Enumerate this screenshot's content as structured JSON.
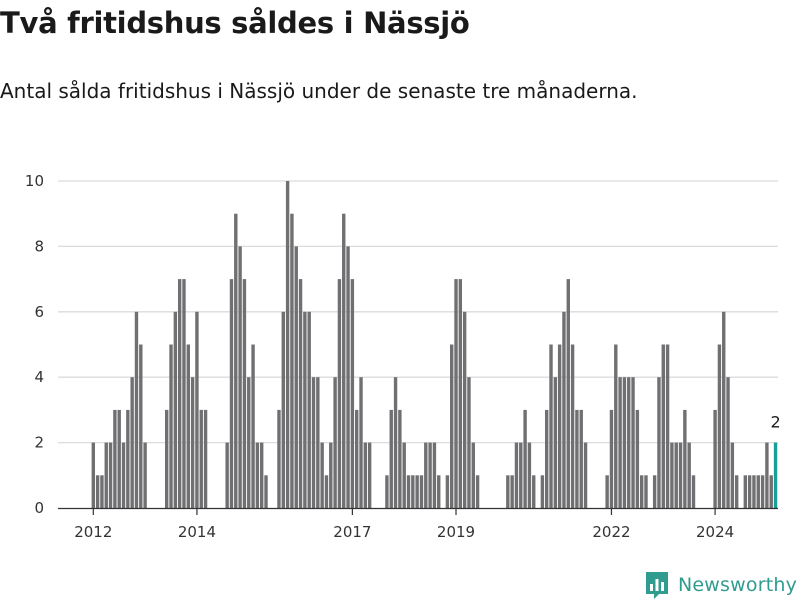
{
  "title": "Två fritidshus såldes i Nässjö",
  "subtitle": "Antal sålda fritidshus i Nässjö under de senaste tre månaderna.",
  "brand": {
    "name": "Newsworthy",
    "logo_icon": "newsworthy-bar-chart-logo-icon"
  },
  "colors": {
    "bar": "#707073",
    "highlight": "#16a096",
    "grid": "#dcdcdc",
    "axis": "#333333",
    "brand": "#2f9c8f"
  },
  "chart_data": {
    "type": "bar",
    "x_start": "2012-01",
    "x_step": "month",
    "values": [
      2,
      1,
      1,
      2,
      2,
      3,
      3,
      2,
      3,
      4,
      6,
      5,
      2,
      0,
      0,
      0,
      0,
      3,
      5,
      6,
      7,
      7,
      5,
      4,
      6,
      3,
      3,
      0,
      0,
      0,
      0,
      2,
      7,
      9,
      8,
      7,
      4,
      5,
      2,
      2,
      1,
      0,
      0,
      3,
      6,
      10,
      9,
      8,
      7,
      6,
      6,
      4,
      4,
      2,
      1,
      2,
      4,
      7,
      9,
      8,
      7,
      3,
      4,
      2,
      2,
      0,
      0,
      0,
      1,
      3,
      4,
      3,
      2,
      1,
      1,
      1,
      1,
      2,
      2,
      2,
      1,
      0,
      1,
      5,
      7,
      7,
      6,
      4,
      2,
      1,
      0,
      0,
      0,
      0,
      0,
      0,
      1,
      1,
      2,
      2,
      3,
      2,
      1,
      0,
      1,
      3,
      5,
      4,
      5,
      6,
      7,
      5,
      3,
      3,
      2,
      0,
      0,
      0,
      0,
      1,
      3,
      5,
      4,
      4,
      4,
      4,
      3,
      1,
      1,
      0,
      1,
      4,
      5,
      5,
      2,
      2,
      2,
      3,
      2,
      1,
      0,
      0,
      0,
      0,
      3,
      5,
      6,
      4,
      2,
      1,
      0,
      1,
      1,
      1,
      1,
      1,
      2,
      1,
      2
    ],
    "highlight_last": true,
    "last_value_label": "2",
    "x_ticks": [
      "2012",
      "2014",
      "2017",
      "2019",
      "2022",
      "2024"
    ],
    "y_ticks": [
      0,
      2,
      4,
      6,
      8,
      10
    ],
    "ylim": [
      0,
      10
    ],
    "grid": true,
    "legend": "none",
    "xlabel": "",
    "ylabel": ""
  }
}
